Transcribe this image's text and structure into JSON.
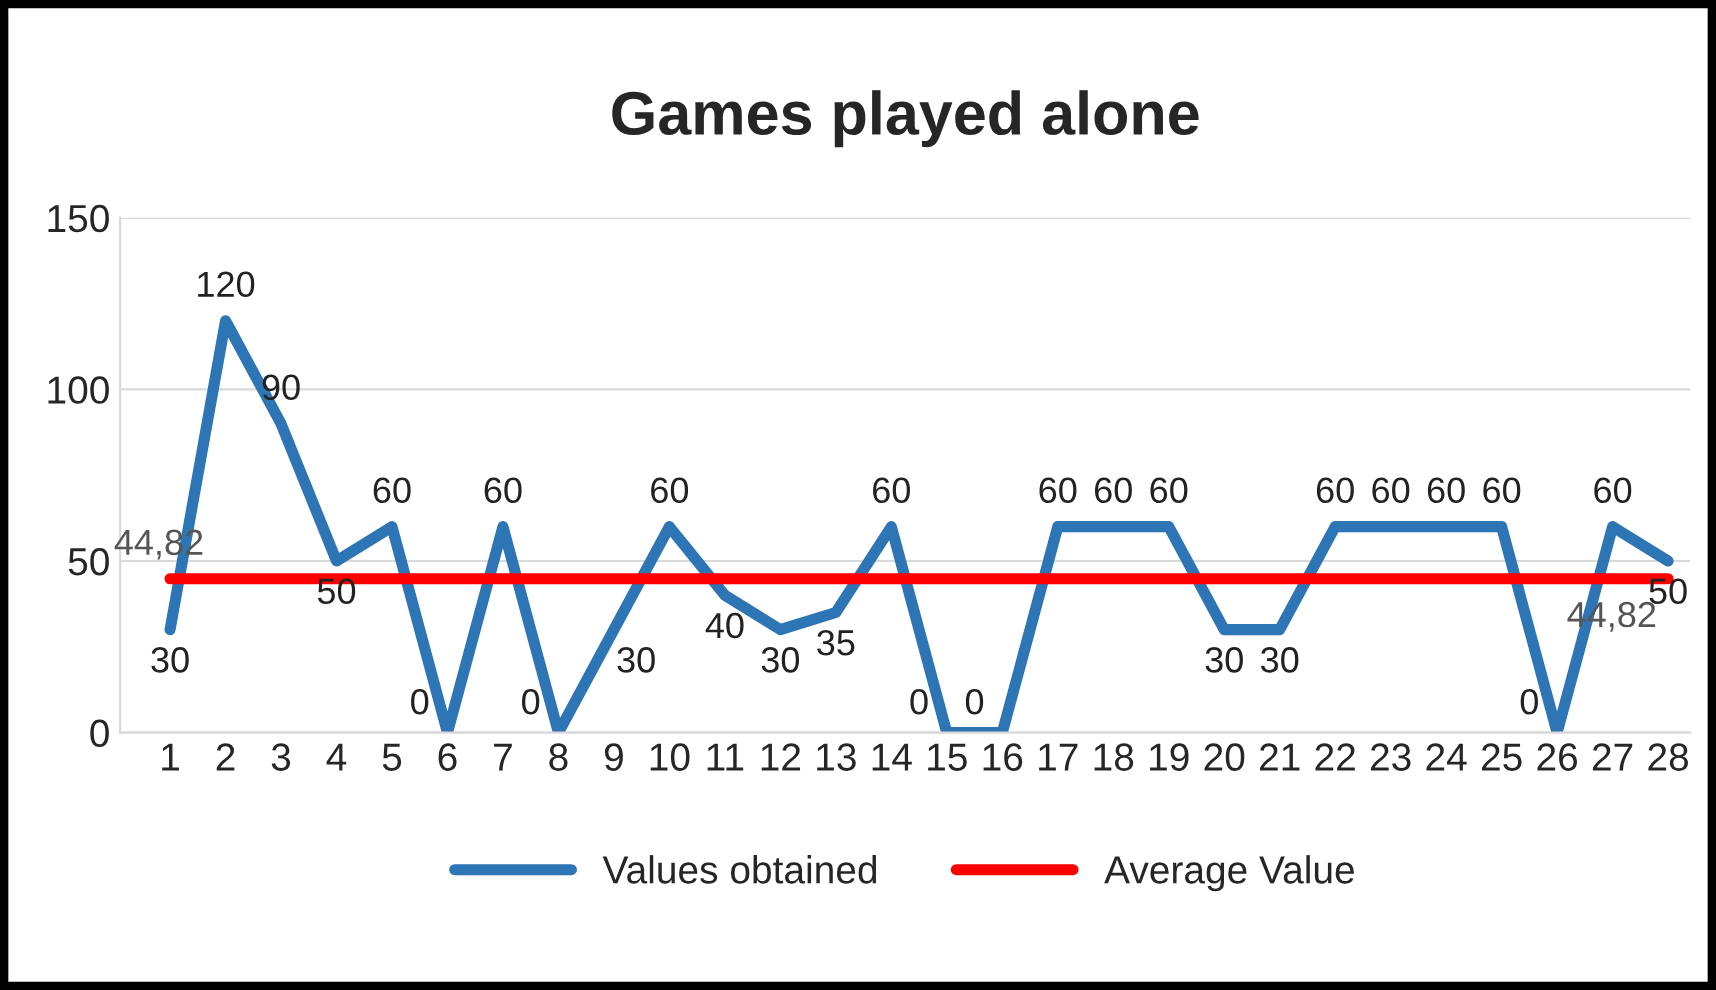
{
  "chart_data": {
    "type": "line",
    "title": "Games played alone",
    "categories": [
      "1",
      "2",
      "3",
      "4",
      "5",
      "6",
      "7",
      "8",
      "9",
      "10",
      "11",
      "12",
      "13",
      "14",
      "15",
      "16",
      "17",
      "18",
      "19",
      "20",
      "21",
      "22",
      "23",
      "24",
      "25",
      "26",
      "27",
      "28"
    ],
    "series": [
      {
        "name": "Values obtained",
        "color": "#2e75b6",
        "values": [
          30,
          120,
          90,
          50,
          60,
          0,
          60,
          0,
          30,
          60,
          40,
          30,
          35,
          60,
          0,
          0,
          60,
          60,
          60,
          30,
          30,
          60,
          60,
          60,
          60,
          0,
          60,
          50
        ],
        "value_labels": [
          "30",
          "120",
          "90",
          "50",
          "60",
          "0",
          "60",
          "0",
          "30",
          "60",
          "40",
          "30",
          "35",
          "60",
          "0",
          "0",
          "60",
          "60",
          "60",
          "30",
          "30",
          "60",
          "60",
          "60",
          "60",
          "0",
          "60",
          "50"
        ]
      },
      {
        "name": "Average Value",
        "color": "#ff0000",
        "values": [
          44.82,
          44.82,
          44.82,
          44.82,
          44.82,
          44.82,
          44.82,
          44.82,
          44.82,
          44.82,
          44.82,
          44.82,
          44.82,
          44.82,
          44.82,
          44.82,
          44.82,
          44.82,
          44.82,
          44.82,
          44.82,
          44.82,
          44.82,
          44.82,
          44.82,
          44.82,
          44.82,
          44.82
        ],
        "value_labels": [
          "44,82",
          null,
          null,
          null,
          null,
          null,
          null,
          null,
          null,
          null,
          null,
          null,
          null,
          null,
          null,
          null,
          null,
          null,
          null,
          null,
          null,
          null,
          null,
          null,
          null,
          null,
          null,
          "44,82"
        ]
      }
    ],
    "ylim": [
      0,
      150
    ],
    "yticks": [
      0,
      50,
      100,
      150
    ],
    "grid": "y",
    "legend": "bottom",
    "marker": "none",
    "line_style": "solid"
  }
}
